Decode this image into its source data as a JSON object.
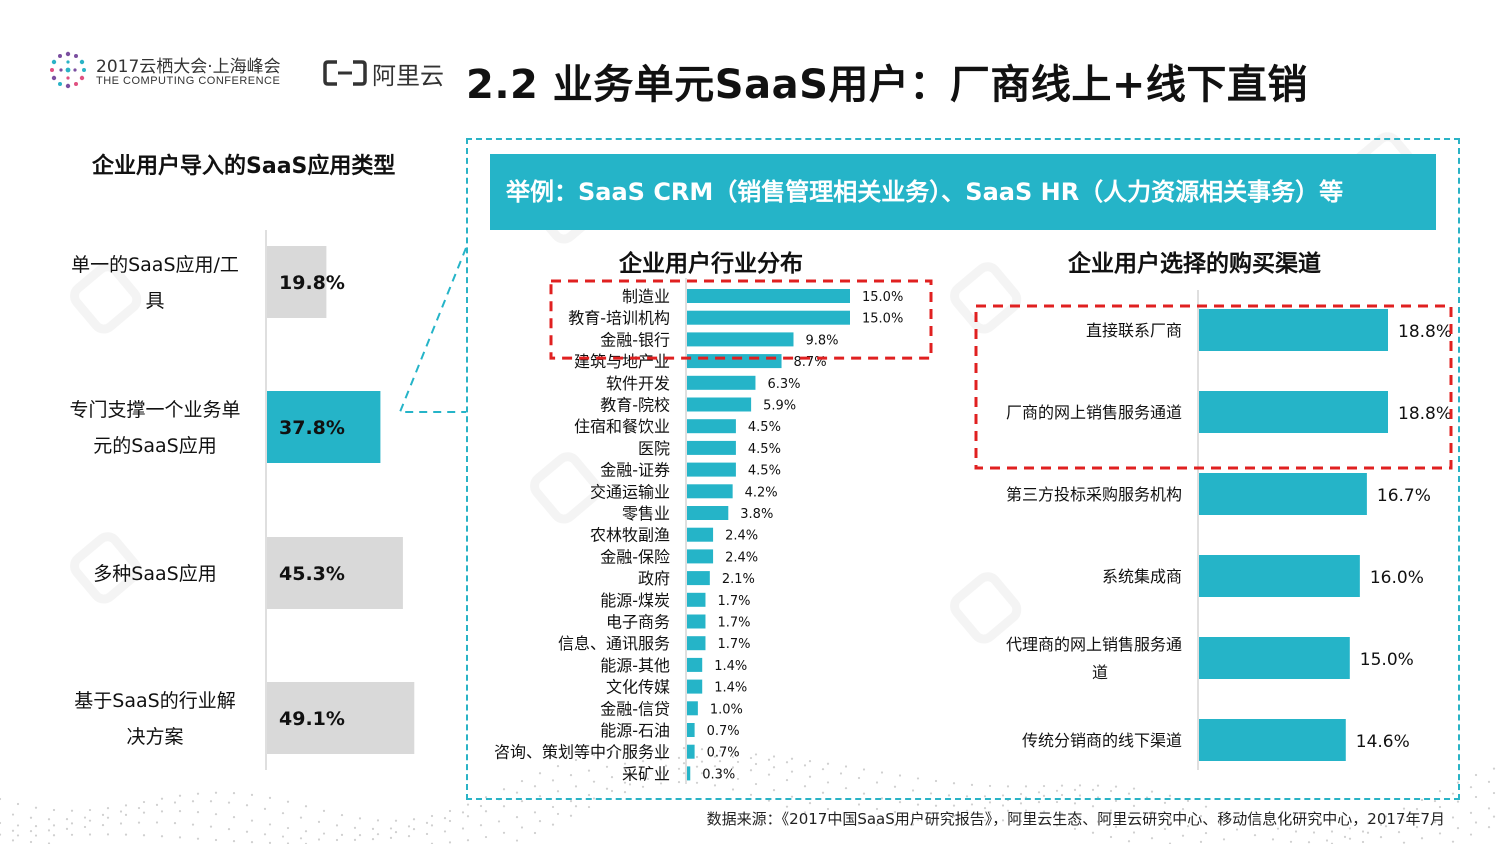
{
  "header": {
    "conference_line1": "2017云栖大会·上海峰会",
    "conference_line2": "THE COMPUTING CONFERENCE",
    "brand_name": "阿里云",
    "title": "2.2 业务单元SaaS用户：厂商线上+线下直销"
  },
  "colors": {
    "accent": "#25b4c8",
    "gray_bar": "#d9d9d9",
    "highlight": "#e02020"
  },
  "example_banner": "举例：SaaS CRM（销售管理相关业务）、SaaS HR（人力资源相关事务）等",
  "source_note": "数据来源：《2017中国SaaS用户研究报告》，阿里云生态、阿里云研究中心、移动信息化研究中心，2017年7月",
  "chart_data": [
    {
      "type": "bar",
      "orientation": "horizontal",
      "title": "企业用户导入的SaaS应用类型",
      "categories": [
        "单一的SaaS应用/工具",
        "专门支撑一个业务单元的SaaS应用",
        "多种SaaS应用",
        "基于SaaS的行业解决方案"
      ],
      "label_lines": [
        [
          "单一的SaaS应用/工",
          "具"
        ],
        [
          "专门支撑一个业务单",
          "元的SaaS应用"
        ],
        [
          "多种SaaS应用"
        ],
        [
          "基于SaaS的行业解",
          "决方案"
        ]
      ],
      "values": [
        19.8,
        37.8,
        45.3,
        49.1
      ],
      "value_labels": [
        "19.8%",
        "37.8%",
        "45.3%",
        "49.1%"
      ],
      "highlight_index": 1
    },
    {
      "type": "bar",
      "orientation": "horizontal",
      "title": "企业用户行业分布",
      "categories": [
        "制造业",
        "教育-培训机构",
        "金融-银行",
        "建筑与地产业",
        "软件开发",
        "教育-院校",
        "住宿和餐饮业",
        "医院",
        "金融-证券",
        "交通运输业",
        "零售业",
        "农林牧副渔",
        "金融-保险",
        "政府",
        "能源-煤炭",
        "电子商务",
        "信息、通讯服务",
        "能源-其他",
        "文化传媒",
        "金融-信贷",
        "能源-石油",
        "咨询、策划等中介服务业",
        "采矿业"
      ],
      "values": [
        15.0,
        15.0,
        9.8,
        8.7,
        6.3,
        5.9,
        4.5,
        4.5,
        4.5,
        4.2,
        3.8,
        2.4,
        2.4,
        2.1,
        1.7,
        1.7,
        1.7,
        1.4,
        1.4,
        1.0,
        0.7,
        0.7,
        0.3
      ],
      "value_labels": [
        "15.0%",
        "15.0%",
        "9.8%",
        "8.7%",
        "6.3%",
        "5.9%",
        "4.5%",
        "4.5%",
        "4.5%",
        "4.2%",
        "3.8%",
        "2.4%",
        "2.4%",
        "2.1%",
        "1.7%",
        "1.7%",
        "1.7%",
        "1.4%",
        "1.4%",
        "1.0%",
        "0.7%",
        "0.7%",
        "0.3%"
      ],
      "highlighted_top": 3
    },
    {
      "type": "bar",
      "orientation": "horizontal",
      "title": "企业用户选择的购买渠道",
      "categories": [
        "直接联系厂商",
        "厂商的网上销售服务通道",
        "第三方投标采购服务机构",
        "系统集成商",
        "代理商的网上销售服务通道",
        "传统分销商的线下渠道"
      ],
      "label_lines": [
        [
          "直接联系厂商"
        ],
        [
          "厂商的网上销售服务通道"
        ],
        [
          "第三方投标采购服务机构"
        ],
        [
          "系统集成商"
        ],
        [
          "代理商的网上销售服务通",
          "道"
        ],
        [
          "传统分销商的线下渠道"
        ]
      ],
      "values": [
        18.8,
        18.8,
        16.7,
        16.0,
        15.0,
        14.6
      ],
      "value_labels": [
        "18.8%",
        "18.8%",
        "16.7%",
        "16.0%",
        "15.0%",
        "14.6%"
      ],
      "highlighted_top": 2
    }
  ]
}
